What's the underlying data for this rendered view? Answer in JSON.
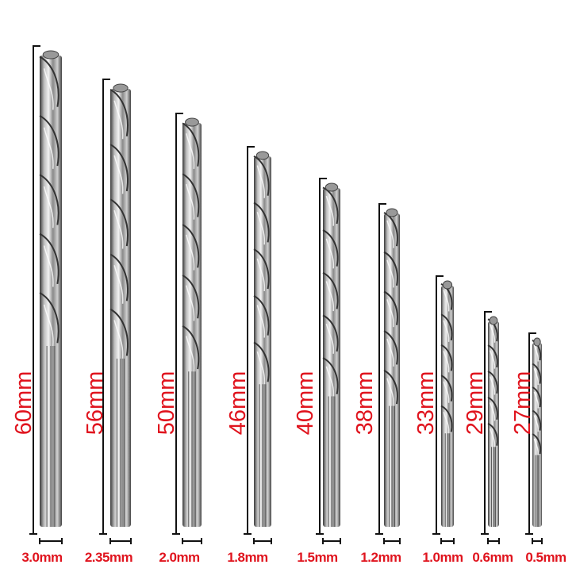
{
  "label_color": "#e0141e",
  "bits": [
    {
      "length": "60mm",
      "diameter": "3.0mm"
    },
    {
      "length": "56mm",
      "diameter": "2.35mm"
    },
    {
      "length": "50mm",
      "diameter": "2.0mm"
    },
    {
      "length": "46mm",
      "diameter": "1.8mm"
    },
    {
      "length": "40mm",
      "diameter": "1.5mm"
    },
    {
      "length": "38mm",
      "diameter": "1.2mm"
    },
    {
      "length": "33mm",
      "diameter": "1.0mm"
    },
    {
      "length": "29mm",
      "diameter": "0.6mm"
    },
    {
      "length": "27mm",
      "diameter": "0.5mm"
    }
  ]
}
